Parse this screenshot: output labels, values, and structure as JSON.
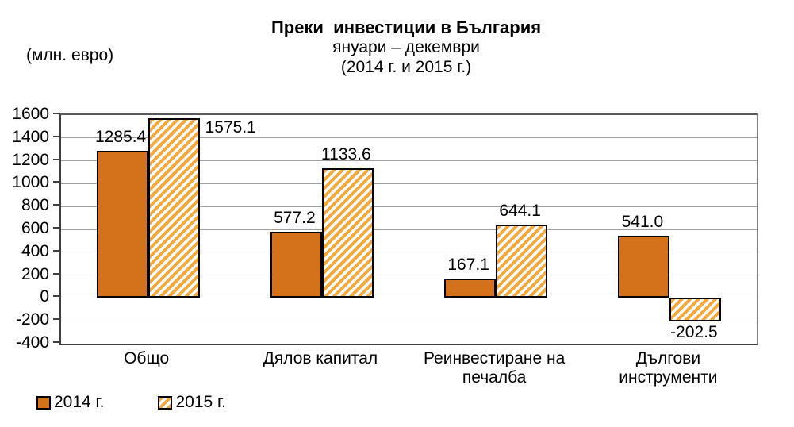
{
  "header": {
    "title": "Преки  инвестиции в България",
    "subtitle_line1": "януари – декември",
    "subtitle_line2": "(2014 г. и 2015 г.)"
  },
  "y_axis": {
    "unit_label": "(млн. евро)",
    "tick_labels": [
      "1600",
      "1400",
      "1200",
      "1000",
      "800",
      "600",
      "400",
      "200",
      "0",
      "-200",
      "-400"
    ]
  },
  "legend": {
    "items": [
      {
        "label": "2014 г.",
        "style": "solid"
      },
      {
        "label": "2015 г.",
        "style": "hatched"
      }
    ]
  },
  "colors": {
    "solid_bar": "#d4711b",
    "hatch_stripe": "#f5a83b",
    "hatch_background": "#ffffff",
    "bar_border": "#000000",
    "gridline": "#a0a0a0",
    "axis": "#3f3f3f"
  },
  "chart_data": {
    "type": "bar",
    "title": "Преки инвестиции в България",
    "subtitle": "януари – декември (2014 г. и 2015 г.)",
    "ylabel": "(млн. евро)",
    "categories": [
      "Общо",
      "Дялов капитал",
      "Реинвестиране на печалба",
      "Дългови инструменти"
    ],
    "category_label_lines": [
      [
        "Общо"
      ],
      [
        "Дялов капитал"
      ],
      [
        "Реинвестиране на",
        "печалба"
      ],
      [
        "Дългови",
        "инструменти"
      ]
    ],
    "series": [
      {
        "name": "2014 г.",
        "pattern": "solid",
        "values": [
          1285.4,
          577.2,
          167.1,
          541.0
        ]
      },
      {
        "name": "2015 г.",
        "pattern": "hatched",
        "values": [
          1575.1,
          1133.6,
          644.1,
          -202.5
        ]
      }
    ],
    "ylim": [
      -400,
      1600
    ],
    "ytick_step": 200,
    "grid": true,
    "legend_position": "bottom-left",
    "value_labels_shown": true
  }
}
